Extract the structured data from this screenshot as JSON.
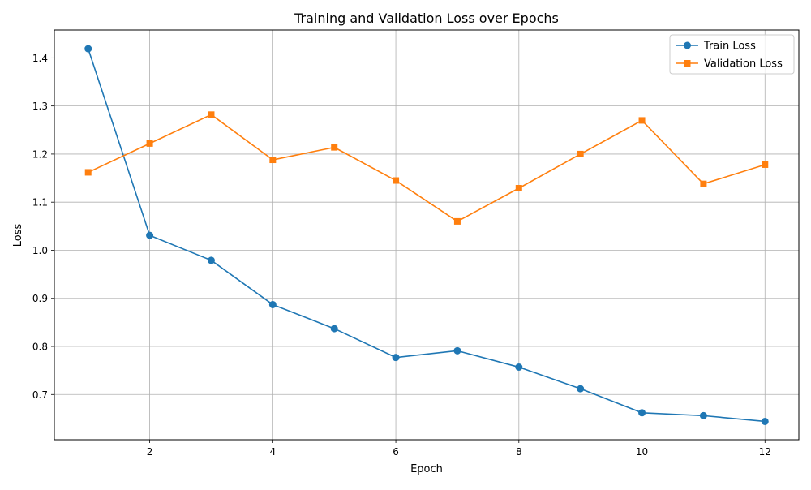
{
  "chart_data": {
    "type": "line",
    "title": "Training and Validation Loss over Epochs",
    "xlabel": "Epoch",
    "ylabel": "Loss",
    "xlim": [
      0.45,
      12.55
    ],
    "ylim": [
      0.606,
      1.458
    ],
    "xticks": [
      2,
      4,
      6,
      8,
      10,
      12
    ],
    "yticks": [
      0.7,
      0.8,
      0.9,
      1.0,
      1.1,
      1.2,
      1.3,
      1.4
    ],
    "grid": true,
    "legend_position": "top-right",
    "x": [
      1,
      2,
      3,
      4,
      5,
      6,
      7,
      8,
      9,
      10,
      11,
      12
    ],
    "series": [
      {
        "name": "Train Loss",
        "color": "#1f77b4",
        "marker": "circle",
        "values": [
          1.419,
          1.031,
          0.979,
          0.887,
          0.837,
          0.777,
          0.791,
          0.757,
          0.712,
          0.662,
          0.656,
          0.644
        ]
      },
      {
        "name": "Validation Loss",
        "color": "#ff7f0e",
        "marker": "square",
        "values": [
          1.162,
          1.222,
          1.282,
          1.188,
          1.214,
          1.145,
          1.06,
          1.129,
          1.2,
          1.27,
          1.138,
          1.178
        ]
      }
    ]
  }
}
